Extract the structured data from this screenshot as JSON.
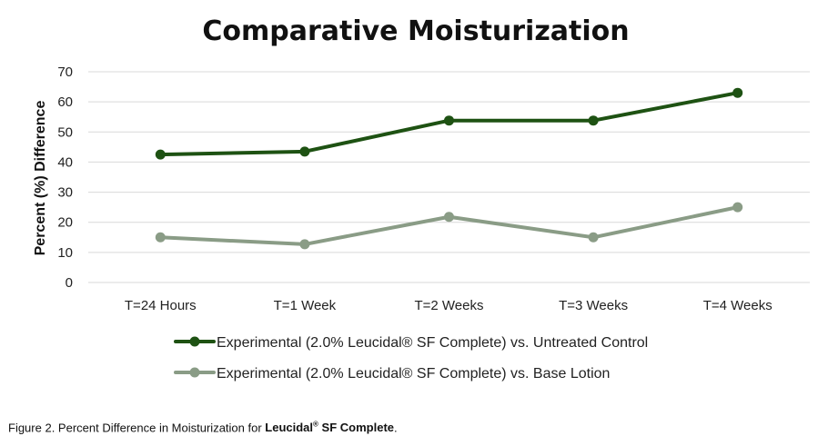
{
  "chart_data": {
    "type": "line",
    "title": "Comparative Moisturization",
    "ylabel": "Percent (%) Difference",
    "xlabel": "",
    "categories": [
      "T=24 Hours",
      "T=1 Week",
      "T=2 Weeks",
      "T=3 Weeks",
      "T=4 Weeks"
    ],
    "ylim": [
      0,
      70
    ],
    "yticks": [
      0,
      10,
      20,
      30,
      40,
      50,
      60,
      70
    ],
    "grid": true,
    "legend_position": "bottom",
    "series": [
      {
        "name": "Experimental (2.0% Leucidal® SF Complete) vs. Untreated Control",
        "values": [
          42.5,
          43.5,
          53.8,
          53.8,
          63
        ],
        "color": "#1e5213"
      },
      {
        "name": "Experimental (2.0% Leucidal® SF Complete) vs. Base Lotion",
        "values": [
          15,
          12.7,
          21.8,
          15,
          25
        ],
        "color": "#8a9c86"
      }
    ]
  },
  "caption": {
    "prefix": "Figure 2.  Percent Difference in Moisturization  for ",
    "product": "Leucidal",
    "mark": "®",
    "product_suffix": " SF Complete",
    "end": "."
  },
  "colors": {
    "grid": "#d9d9d9",
    "text": "#222222"
  }
}
